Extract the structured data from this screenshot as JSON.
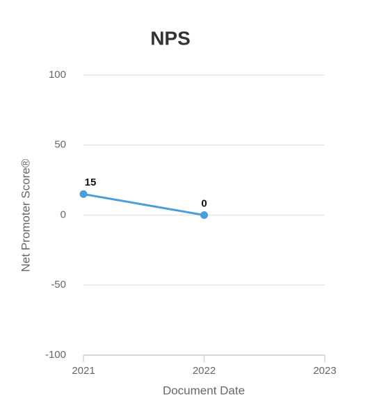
{
  "chart_data": {
    "type": "line",
    "title": "NPS",
    "x_label": "Document Date",
    "y_label": "Net Promoter Score®",
    "x": [
      2021,
      2022
    ],
    "values": [
      15,
      0
    ],
    "color": "#4a9fd8",
    "xlim": [
      2021,
      2023
    ],
    "xticks": [
      2021,
      2022,
      2023
    ],
    "ylim": [
      -100,
      100
    ],
    "yticks": [
      -100,
      -50,
      0,
      50,
      100
    ],
    "grid": true
  }
}
